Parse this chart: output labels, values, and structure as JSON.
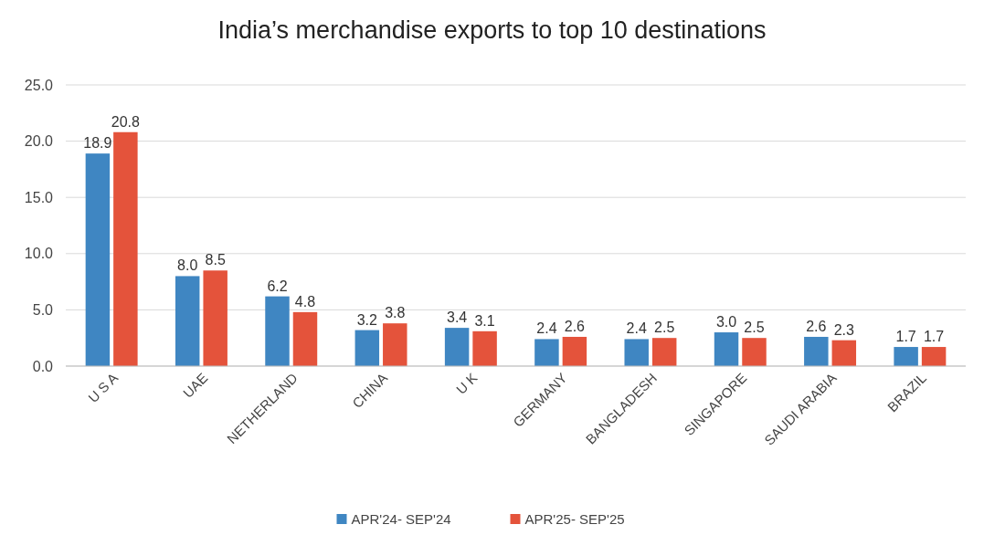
{
  "chart_data": {
    "type": "bar",
    "title": "India’s merchandise exports to top 10 destinations",
    "categories": [
      "U S A",
      "UAE",
      "NETHERLAND",
      "CHINA",
      "U K",
      "GERMANY",
      "BANGLADESH",
      "SINGAPORE",
      "SAUDI ARABIA",
      "BRAZIL"
    ],
    "series": [
      {
        "name": "APR'24- SEP'24",
        "color": "#3f86c2",
        "values": [
          18.9,
          8.0,
          6.2,
          3.2,
          3.4,
          2.4,
          2.4,
          3.0,
          2.6,
          1.7
        ],
        "value_labels": [
          "18.9",
          "8.0",
          "6.2",
          "3.2",
          "3.4",
          "2.4",
          "2.4",
          "3.0",
          "2.6",
          "1.7"
        ]
      },
      {
        "name": "APR'25- SEP'25",
        "color": "#e4533b",
        "values": [
          20.8,
          8.5,
          4.8,
          3.8,
          3.1,
          2.6,
          2.5,
          2.5,
          2.3,
          1.7
        ],
        "value_labels": [
          "20.8",
          "8.5",
          "4.8",
          "3.8",
          "3.1",
          "2.6",
          "2.5",
          "2.5",
          "2.3",
          "1.7"
        ]
      }
    ],
    "ylim": [
      0,
      25
    ],
    "yticks": [
      {
        "value": 0,
        "label": "0.0"
      },
      {
        "value": 5,
        "label": "5.0"
      },
      {
        "value": 10,
        "label": "10.0"
      },
      {
        "value": 15,
        "label": "15.0"
      },
      {
        "value": 20,
        "label": "20.0"
      },
      {
        "value": 25,
        "label": "25.0"
      }
    ],
    "grid": "y",
    "legend": "bottom"
  }
}
